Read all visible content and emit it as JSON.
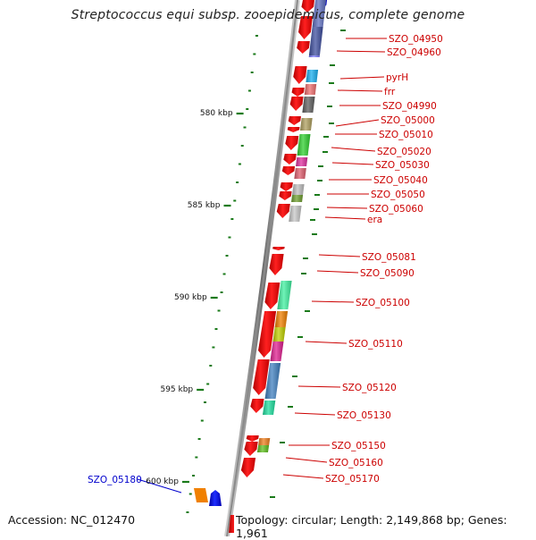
{
  "title": "Streptococcus equi subsp. zooepidemicus, complete genome",
  "footer": {
    "accession": "Accession: NC_012470",
    "summary": "Topology: circular; Length: 2,149,868 bp; Genes: 1,961"
  },
  "axis_labels": [
    "580 kbp",
    "585 kbp",
    "590 kbp",
    "595 kbp",
    "600 kbp"
  ],
  "gene_labels": [
    {
      "name": "SZO_04950",
      "color": "#cc0000"
    },
    {
      "name": "SZO_04960",
      "color": "#cc0000"
    },
    {
      "name": "pyrH",
      "color": "#cc0000"
    },
    {
      "name": "frr",
      "color": "#cc0000"
    },
    {
      "name": "SZO_04990",
      "color": "#cc0000"
    },
    {
      "name": "SZO_05000",
      "color": "#cc0000"
    },
    {
      "name": "SZO_05010",
      "color": "#cc0000"
    },
    {
      "name": "SZO_05020",
      "color": "#cc0000"
    },
    {
      "name": "SZO_05030",
      "color": "#cc0000"
    },
    {
      "name": "SZO_05040",
      "color": "#cc0000"
    },
    {
      "name": "SZO_05050",
      "color": "#cc0000"
    },
    {
      "name": "SZO_05060",
      "color": "#cc0000"
    },
    {
      "name": "era",
      "color": "#cc0000"
    },
    {
      "name": "SZO_05081",
      "color": "#cc0000"
    },
    {
      "name": "SZO_05090",
      "color": "#cc0000"
    },
    {
      "name": "SZO_05100",
      "color": "#cc0000"
    },
    {
      "name": "SZO_05110",
      "color": "#cc0000"
    },
    {
      "name": "SZO_05120",
      "color": "#cc0000"
    },
    {
      "name": "SZO_05130",
      "color": "#cc0000"
    },
    {
      "name": "SZO_05150",
      "color": "#cc0000"
    },
    {
      "name": "SZO_05160",
      "color": "#cc0000"
    },
    {
      "name": "SZO_05170",
      "color": "#cc0000"
    },
    {
      "name": "SZO_05180",
      "color": "#0000cc"
    }
  ],
  "colors": {
    "backbone": "#8a8a8a",
    "tick": "#1a7a1a",
    "forward_gene": "#ee0000",
    "reverse_gene": "#0000ee",
    "label_red": "#cc0000",
    "label_blue": "#0000cc"
  }
}
